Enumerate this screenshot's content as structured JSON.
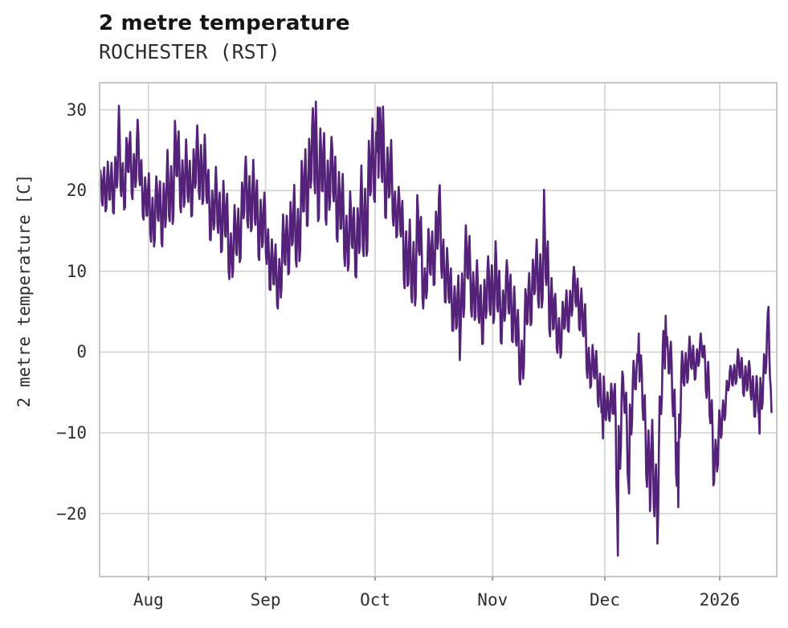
{
  "header": {
    "title": "2 metre temperature",
    "subtitle": "ROCHESTER (RST)"
  },
  "chart_data": {
    "type": "line",
    "title": "2 metre temperature",
    "subtitle": "ROCHESTER (RST)",
    "xlabel": "",
    "ylabel": "2 metre temperature [C]",
    "legend_position": "none",
    "grid": true,
    "line_color": "#542278",
    "grid_color": "#d2d2d2",
    "spine_color": "#c8c8c8",
    "text_color": "#2e2e2e",
    "x_range_days": [
      0,
      181.6
    ],
    "data_end_day": 180.3,
    "x_ticks": [
      {
        "label": "Aug",
        "day": 13.1
      },
      {
        "label": "Sep",
        "day": 44.5
      },
      {
        "label": "Oct",
        "day": 73.9
      },
      {
        "label": "Nov",
        "day": 105.4
      },
      {
        "label": "Dec",
        "day": 135.5
      },
      {
        "label": "2026",
        "day": 166.3
      }
    ],
    "y_ticks": [
      30,
      20,
      10,
      0,
      -10,
      -20
    ],
    "ylim": [
      -27.8,
      33.35
    ],
    "envelope_day_lo_hi": [
      [
        0,
        17.5,
        22
      ],
      [
        1,
        18,
        27
      ],
      [
        2.5,
        15.5,
        23
      ],
      [
        4,
        16,
        25
      ],
      [
        5.2,
        18,
        30.5
      ],
      [
        6.5,
        17.5,
        26
      ],
      [
        7.5,
        19,
        29.3
      ],
      [
        9,
        17.5,
        26
      ],
      [
        10.3,
        18,
        29
      ],
      [
        11.5,
        17,
        25
      ],
      [
        13,
        14,
        23
      ],
      [
        14.5,
        11.2,
        22
      ],
      [
        16,
        12,
        21.5
      ],
      [
        17.5,
        13,
        25
      ],
      [
        19,
        15,
        27
      ],
      [
        20.3,
        16,
        29.8
      ],
      [
        21.5,
        15.5,
        26.5
      ],
      [
        23,
        16,
        26.5
      ],
      [
        25,
        17,
        27.7
      ],
      [
        27.5,
        16,
        28.5
      ],
      [
        29.5,
        14,
        24
      ],
      [
        31.5,
        13,
        23
      ],
      [
        33.5,
        9,
        21
      ],
      [
        35.5,
        8.3,
        18
      ],
      [
        37.5,
        10.5,
        21
      ],
      [
        39,
        12,
        24
      ],
      [
        40.5,
        14,
        25.5
      ],
      [
        42.5,
        12,
        24
      ],
      [
        44.5,
        8,
        19
      ],
      [
        46.5,
        5.2,
        14
      ],
      [
        48.5,
        5.5,
        16
      ],
      [
        50.5,
        8,
        19
      ],
      [
        52.5,
        9,
        21
      ],
      [
        54.5,
        13,
        26
      ],
      [
        56.5,
        15,
        29.5
      ],
      [
        58,
        16,
        31
      ],
      [
        59.5,
        16,
        30.4
      ],
      [
        61.5,
        15,
        27
      ],
      [
        63.5,
        13,
        26
      ],
      [
        66,
        10,
        22
      ],
      [
        68.5,
        7.5,
        18
      ],
      [
        70.5,
        9,
        24
      ],
      [
        72,
        13,
        28.8
      ],
      [
        74,
        17,
        30
      ],
      [
        76,
        17,
        30.4
      ],
      [
        78,
        16,
        28
      ],
      [
        79.5,
        13,
        21
      ],
      [
        81.5,
        8,
        19.5
      ],
      [
        83.5,
        4.2,
        17
      ],
      [
        85.5,
        6,
        20.9
      ],
      [
        87,
        3.7,
        12
      ],
      [
        89,
        8,
        18
      ],
      [
        91,
        9,
        21.5
      ],
      [
        93,
        3,
        13
      ],
      [
        95,
        2.6,
        12
      ],
      [
        96.5,
        -1,
        9
      ],
      [
        98,
        4,
        16
      ],
      [
        100,
        4,
        14
      ],
      [
        102,
        1,
        11
      ],
      [
        103.5,
        -0.6,
        10
      ],
      [
        105,
        3,
        14
      ],
      [
        106.5,
        2,
        15.4
      ],
      [
        108,
        0.9,
        10
      ],
      [
        110,
        1.5,
        12.3
      ],
      [
        112,
        -3.1,
        7
      ],
      [
        113.5,
        -4.8,
        5
      ],
      [
        115,
        1,
        11
      ],
      [
        117,
        4,
        13.4
      ],
      [
        119.2,
        6,
        20.1
      ],
      [
        121,
        0,
        12
      ],
      [
        122.5,
        -2.7,
        6
      ],
      [
        124,
        0,
        7.5
      ],
      [
        125.5,
        2,
        9
      ],
      [
        127,
        3,
        10.6
      ],
      [
        129,
        2,
        10.2
      ],
      [
        130.5,
        -3,
        6
      ],
      [
        132,
        -5.6,
        1
      ],
      [
        133.5,
        -7,
        0.4
      ],
      [
        135,
        -10.7,
        -3
      ],
      [
        136.5,
        -8,
        -2.6
      ],
      [
        138,
        -11,
        -3
      ],
      [
        139,
        -25.2,
        -6
      ],
      [
        140.5,
        -8,
        -1.5
      ],
      [
        142,
        -17.5,
        -3
      ],
      [
        143.5,
        -6,
        0
      ],
      [
        144.6,
        -4,
        2.3
      ],
      [
        146,
        -14,
        -4
      ],
      [
        147.5,
        -19.7,
        -6
      ],
      [
        149.6,
        -23.7,
        -10
      ],
      [
        151,
        -9,
        2
      ],
      [
        151.8,
        -2,
        4.5
      ],
      [
        153,
        -4.7,
        2.1
      ],
      [
        155.2,
        -19.2,
        -3
      ],
      [
        156.5,
        -6,
        1
      ],
      [
        158,
        -4.7,
        1.9
      ],
      [
        160,
        -3.1,
        2.2
      ],
      [
        162,
        -1.5,
        2.4
      ],
      [
        163.5,
        -12,
        -2
      ],
      [
        164.7,
        -16.5,
        -8
      ],
      [
        166,
        -15,
        -7
      ],
      [
        167.5,
        -9,
        -4
      ],
      [
        169,
        -5.5,
        -2
      ],
      [
        171,
        -4,
        1
      ],
      [
        172.5,
        -5,
        0.5
      ],
      [
        174,
        -7.1,
        -1
      ],
      [
        176,
        -9.2,
        -2
      ],
      [
        177,
        -10.1,
        -3
      ],
      [
        178.3,
        -4,
        3
      ],
      [
        179.5,
        -2,
        5.6
      ],
      [
        180.3,
        -10,
        -9
      ]
    ],
    "key_points_day_value": [
      [
        5.2,
        30.5
      ],
      [
        58,
        31
      ],
      [
        74.5,
        30.3
      ],
      [
        76,
        30.4
      ],
      [
        96.5,
        -1
      ],
      [
        119.2,
        20.1
      ],
      [
        135,
        -10.7
      ],
      [
        139,
        -25.2
      ],
      [
        142,
        -17.5
      ],
      [
        144.6,
        2.3
      ],
      [
        147.5,
        -19.7
      ],
      [
        149.6,
        -23.7
      ],
      [
        151.8,
        4.5
      ],
      [
        155.2,
        -19.2
      ],
      [
        164.7,
        -16.5
      ],
      [
        176.9,
        -10.1
      ],
      [
        179.4,
        5.6
      ],
      [
        180.3,
        -10
      ]
    ]
  }
}
